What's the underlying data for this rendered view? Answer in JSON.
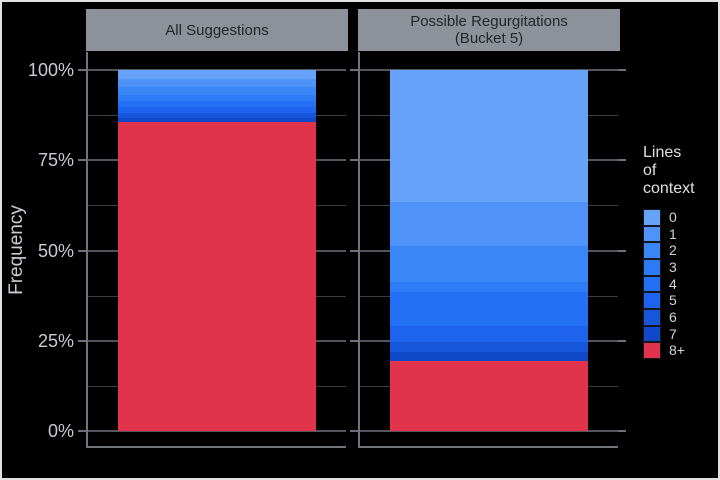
{
  "ui": {
    "panel_headers": [
      "All Suggestions",
      "Possible Regurgitations\n(Bucket 5)"
    ],
    "legend_title_display": "Lines\nof\ncontext",
    "colors": {
      "background": "#000000",
      "facet_header_bg": "#8c919a",
      "facet_header_text": "#24272c",
      "axis_text": "#c9ccd0",
      "grid_major": "#53575d",
      "grid_minor": "#3a3d42",
      "axis_line": "#70757b"
    }
  },
  "chart_data": {
    "type": "bar",
    "variant": "stacked-percent-faceted",
    "title": "",
    "xlabel": "",
    "ylabel": "Frequency",
    "units": "percent",
    "ylim": [
      0,
      100
    ],
    "grid": true,
    "yticks_pct": [
      0,
      25,
      50,
      75,
      100
    ],
    "ytick_labels": [
      "0%",
      "25%",
      "50%",
      "75%",
      "100%"
    ],
    "minor_ticks_pct": [
      12.5,
      37.5,
      62.5,
      87.5
    ],
    "legend_title": "Lines of context",
    "legend_position": "right",
    "categories": [
      "All Suggestions",
      "Possible Regurgitations (Bucket 5)"
    ],
    "series": [
      {
        "name": "0",
        "color": "#66a2fa",
        "values": [
          2.6,
          36.6
        ]
      },
      {
        "name": "1",
        "color": "#4f93f8",
        "values": [
          2.2,
          12.2
        ]
      },
      {
        "name": "2",
        "color": "#3a86f7",
        "values": [
          2.0,
          10.0
        ]
      },
      {
        "name": "3",
        "color": "#2e7bf6",
        "values": [
          1.8,
          2.8
        ]
      },
      {
        "name": "4",
        "color": "#2470f5",
        "values": [
          1.7,
          9.4
        ]
      },
      {
        "name": "5",
        "color": "#1e63ed",
        "values": [
          1.5,
          4.4
        ]
      },
      {
        "name": "6",
        "color": "#1556db",
        "values": [
          1.4,
          2.8
        ]
      },
      {
        "name": "7",
        "color": "#0f49c9",
        "values": [
          1.2,
          2.4
        ]
      },
      {
        "name": "8+",
        "color": "#e2334c",
        "values": [
          85.6,
          19.4
        ]
      }
    ]
  }
}
